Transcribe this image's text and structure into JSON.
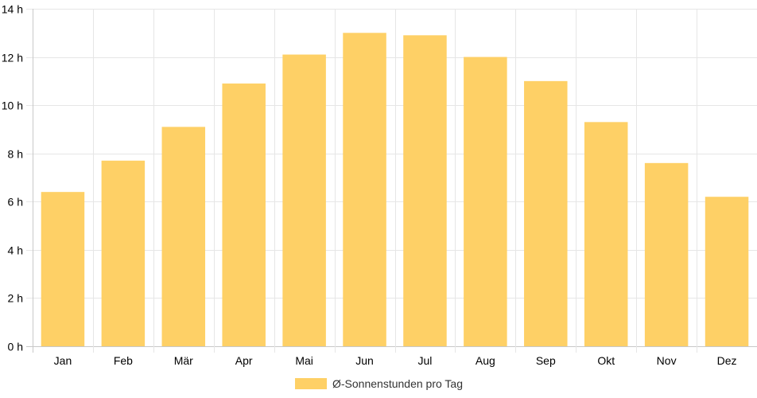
{
  "chart_data": {
    "type": "bar",
    "categories": [
      "Jan",
      "Feb",
      "Mär",
      "Apr",
      "Mai",
      "Jun",
      "Jul",
      "Aug",
      "Sep",
      "Okt",
      "Nov",
      "Dez"
    ],
    "series": [
      {
        "name": "Ø-Sonnenstunden pro Tag",
        "values": [
          6.4,
          7.7,
          9.1,
          10.9,
          12.1,
          13.0,
          12.9,
          12.0,
          11.0,
          9.3,
          7.6,
          6.2
        ],
        "color": "#fed066"
      }
    ],
    "yticks": [
      "0 h",
      "2 h",
      "4 h",
      "6 h",
      "8 h",
      "10 h",
      "12 h",
      "14 h"
    ],
    "ylim": [
      0,
      14
    ],
    "grid": true,
    "legend": "bottom-center"
  }
}
